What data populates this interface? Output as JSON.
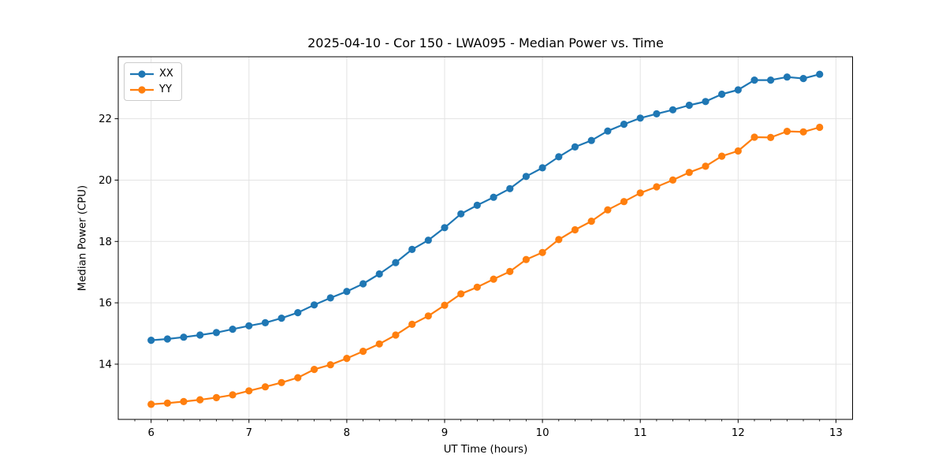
{
  "figure": {
    "title": "2025-04-10 - Cor 150 - LWA095 - Median Power vs. Time",
    "xlabel": "UT Time (hours)",
    "ylabel": "Median Power (CPU)"
  },
  "legend": {
    "items": [
      {
        "label": "XX",
        "color": "#1f77b4"
      },
      {
        "label": "YY",
        "color": "#ff7f0e"
      }
    ]
  },
  "chart_data": {
    "type": "line",
    "title": "2025-04-10 - Cor 150 - LWA095 - Median Power vs. Time",
    "xlabel": "UT Time (hours)",
    "ylabel": "Median Power (CPU)",
    "xlim": [
      5.664,
      13.17
    ],
    "ylim": [
      12.2,
      24.02
    ],
    "x_ticks": [
      6,
      7,
      8,
      9,
      10,
      11,
      12,
      13
    ],
    "y_ticks": [
      14,
      16,
      18,
      20,
      22
    ],
    "x_minor_step": 0.1667,
    "grid": true,
    "grid_color": "#e3e3e3",
    "legend_position": "upper-left",
    "marker": "circle",
    "x": [
      6.0,
      6.167,
      6.333,
      6.5,
      6.667,
      6.833,
      7.0,
      7.167,
      7.333,
      7.5,
      7.667,
      7.833,
      8.0,
      8.167,
      8.333,
      8.5,
      8.667,
      8.833,
      9.0,
      9.167,
      9.333,
      9.5,
      9.667,
      9.833,
      10.0,
      10.167,
      10.333,
      10.5,
      10.667,
      10.833,
      11.0,
      11.167,
      11.333,
      11.5,
      11.667,
      11.833,
      12.0,
      12.167,
      12.333,
      12.5,
      12.667,
      12.833
    ],
    "series": [
      {
        "name": "XX",
        "color": "#1f77b4",
        "values": [
          14.78,
          14.82,
          14.88,
          14.95,
          15.03,
          15.14,
          15.25,
          15.35,
          15.5,
          15.68,
          15.93,
          16.16,
          16.37,
          16.62,
          16.94,
          17.31,
          17.74,
          18.04,
          18.45,
          18.9,
          19.18,
          19.44,
          19.72,
          20.12,
          20.4,
          20.76,
          21.08,
          21.29,
          21.6,
          21.82,
          22.02,
          22.16,
          22.29,
          22.44,
          22.56,
          22.8,
          22.94,
          23.26,
          23.26,
          23.36,
          23.31,
          23.45
        ]
      },
      {
        "name": "YY",
        "color": "#ff7f0e",
        "values": [
          12.69,
          12.73,
          12.78,
          12.84,
          12.91,
          13.0,
          13.13,
          13.26,
          13.4,
          13.56,
          13.83,
          13.98,
          14.19,
          14.42,
          14.66,
          14.95,
          15.3,
          15.57,
          15.92,
          16.29,
          16.51,
          16.77,
          17.02,
          17.41,
          17.64,
          18.06,
          18.38,
          18.66,
          19.03,
          19.3,
          19.58,
          19.78,
          20.0,
          20.25,
          20.45,
          20.78,
          20.95,
          21.4,
          21.39,
          21.59,
          21.57,
          21.72
        ]
      }
    ]
  }
}
